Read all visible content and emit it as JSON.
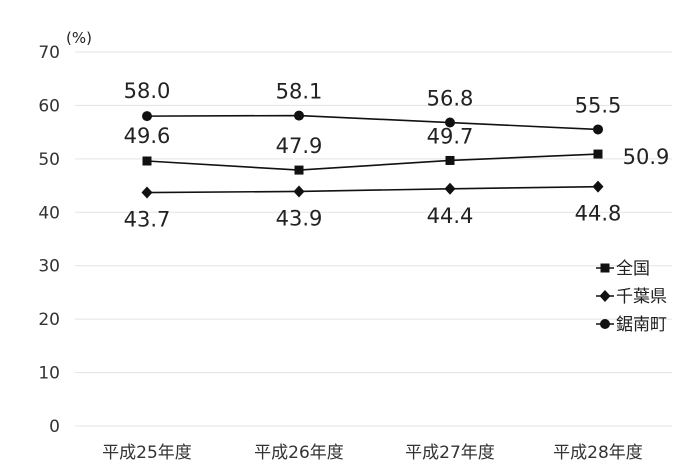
{
  "chart_data": {
    "type": "line",
    "y_unit": "(%)",
    "categories": [
      "平成25年度",
      "平成26年度",
      "平成27年度",
      "平成28年度"
    ],
    "ylim": [
      0,
      70
    ],
    "yticks": [
      0,
      10,
      20,
      30,
      40,
      50,
      60,
      70
    ],
    "grid": true,
    "legend_position": "right",
    "series": [
      {
        "name": "全国",
        "marker": "square",
        "values": [
          49.6,
          47.9,
          49.7,
          50.9
        ],
        "labels": [
          "49.6",
          "47.9",
          "49.7",
          "50.9"
        ]
      },
      {
        "name": "千葉県",
        "marker": "diamond",
        "values": [
          43.7,
          43.9,
          44.4,
          44.8
        ],
        "labels": [
          "43.7",
          "43.9",
          "44.4",
          "44.8"
        ]
      },
      {
        "name": "鋸南町",
        "marker": "circle",
        "values": [
          58.0,
          58.1,
          56.8,
          55.5
        ],
        "labels": [
          "58.0",
          "58.1",
          "56.8",
          "55.5"
        ]
      }
    ],
    "colors": {
      "line": "#111111",
      "grid": "#e3e3e3",
      "text": "#333333"
    }
  }
}
